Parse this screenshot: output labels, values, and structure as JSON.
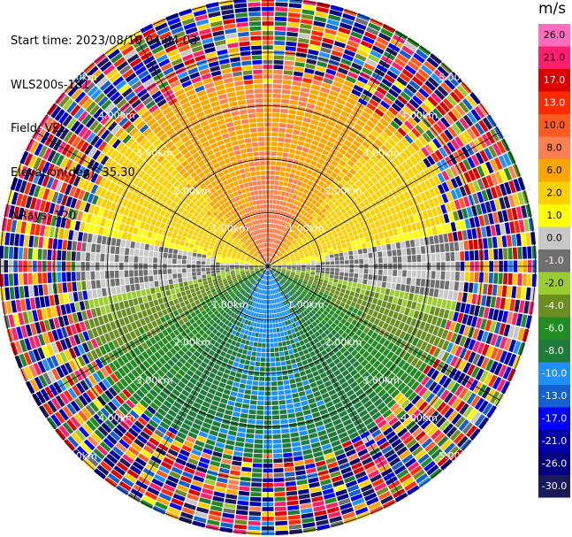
{
  "header": {
    "start_time": "Start time: 2023/08/10 04:04:03",
    "instrument": "WLS200s-181",
    "field": "Field: VEL",
    "elevation": "Elevation(deg): 35.30",
    "nrays": "NRays: 120"
  },
  "colorbar": {
    "unit": "m/s",
    "ticks": [
      "26.0",
      "21.0",
      "17.0",
      "13.0",
      "10.0",
      "8.0",
      "6.0",
      "2.0",
      "1.0",
      "0.0",
      "-1.0",
      "-2.0",
      "-4.0",
      "-6.0",
      "-8.0",
      "-10.0",
      "-13.0",
      "-17.0",
      "-21.0",
      "-26.0",
      "-30.0"
    ],
    "colors": [
      "#ff6cbf",
      "#ff1f6c",
      "#dc0000",
      "#ff2a00",
      "#ff5a1f",
      "#ff7f50",
      "#ffa500",
      "#ffd000",
      "#ffff00",
      "#c8c8c8",
      "#6f6f6f",
      "#9acd32",
      "#6b8e23",
      "#228b22",
      "#1e7b3a",
      "#1e90ff",
      "#1560d0",
      "#0000ff",
      "#0000aa",
      "#000080",
      "#1a1a5a"
    ]
  },
  "range_rings": {
    "labels": [
      "1.00km",
      "2.00km",
      "3.00km",
      "4.00km",
      "5.00km"
    ]
  },
  "chart_data": {
    "type": "heatmap",
    "projection": "polar PPI",
    "field": "VEL",
    "elevation_deg": 35.3,
    "n_rays": 120,
    "range_km": [
      0,
      5.0
    ],
    "ring_spacing_km": 1.0,
    "value_range": [
      -30.0,
      26.0
    ],
    "unit": "m/s",
    "pattern": {
      "north_sector_velocity": 8.0,
      "south_sector_velocity": -8.0,
      "near_field_peak_north": 10.0,
      "near_field_peak_south": -10.0,
      "noise_beyond_km": 3.6
    }
  }
}
